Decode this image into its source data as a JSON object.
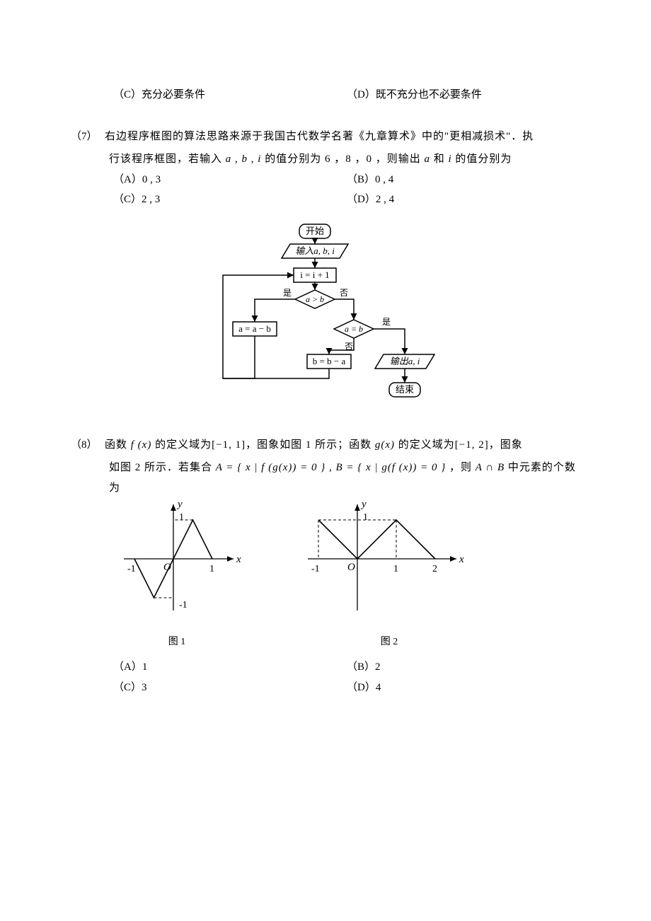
{
  "q6": {
    "optC": "（C）充分必要条件",
    "optD": "（D）既不充分也不必要条件"
  },
  "q7": {
    "num": "（7）",
    "text_line1": "右边程序框图的算法思路来源于我国古代数学名著《九章算术》中的\"更相减损术\"．执",
    "text_line2": "行该程序框图，若输入 a , b , i 的值分别为 6 ，8 ，0 ，则输出 a 和 i 的值分别为",
    "optA": "（A）0 , 3",
    "optB": "（B）0 , 4",
    "optC": "（C）2 , 3",
    "optD": "（D）2 , 4"
  },
  "flowchart": {
    "start": "开始",
    "input": "输入a, b, i",
    "step1": "i = i + 1",
    "cond1": "a > b",
    "yes": "是",
    "no": "否",
    "stepA": "a = a − b",
    "cond2": "a = b",
    "stepB": "b = b − a",
    "output": "输出a, i",
    "end": "结束",
    "stroke": "#000000",
    "lineWidth": 1.5,
    "fontSize": 13
  },
  "q8": {
    "num": "（8）",
    "text_line1_a": "函数 ",
    "fx": "f (x)",
    "text_line1_b": " 的定义域为",
    "dom1": "[−1, 1]",
    "text_line1_c": "，图象如图 1 所示；函数 ",
    "gx": "g(x)",
    "text_line1_d": " 的定义域为",
    "dom2": "[−1, 2]",
    "text_line1_e": "，图象",
    "text_line2_a": "如图 2 所示．若集合 ",
    "setA": "A = { x | f (g(x)) = 0 }",
    "text_line2_b": " , ",
    "setB": "B = { x | g(f (x)) = 0 }",
    "text_line2_c": " ，则 ",
    "AintB": "A ∩ B",
    "text_line2_d": " 中元素的个数",
    "text_line3": "为",
    "optA": "（A）1",
    "optB": "（B）2",
    "optC": "（C）3",
    "optD": "（D）4",
    "fig1_label": "图 1",
    "fig2_label": "图 2"
  },
  "graph1": {
    "xmin": -1,
    "xmax": 1,
    "ymin": -1,
    "ymax": 1,
    "scale": 55,
    "stroke": "#000000",
    "points": [
      [
        -1,
        0
      ],
      [
        -0.5,
        -1
      ],
      [
        0,
        0
      ],
      [
        0.5,
        1
      ],
      [
        1,
        0
      ]
    ],
    "xticks": [
      {
        "x": -1,
        "label": "-1"
      },
      {
        "x": 1,
        "label": "1"
      }
    ],
    "yticks": [
      {
        "y": 1,
        "label": "1"
      },
      {
        "y": -1,
        "label": "-1"
      }
    ]
  },
  "graph2": {
    "xmin": -1,
    "xmax": 2,
    "ymin": -1,
    "ymax": 1,
    "scale": 55,
    "stroke": "#000000",
    "points": [
      [
        -1,
        1
      ],
      [
        0,
        0
      ],
      [
        1,
        1
      ],
      [
        2,
        0
      ]
    ],
    "xticks": [
      {
        "x": -1,
        "label": "-1"
      },
      {
        "x": 1,
        "label": "1"
      },
      {
        "x": 2,
        "label": "2"
      }
    ],
    "yticks": [
      {
        "y": 1,
        "label": "1"
      }
    ]
  }
}
